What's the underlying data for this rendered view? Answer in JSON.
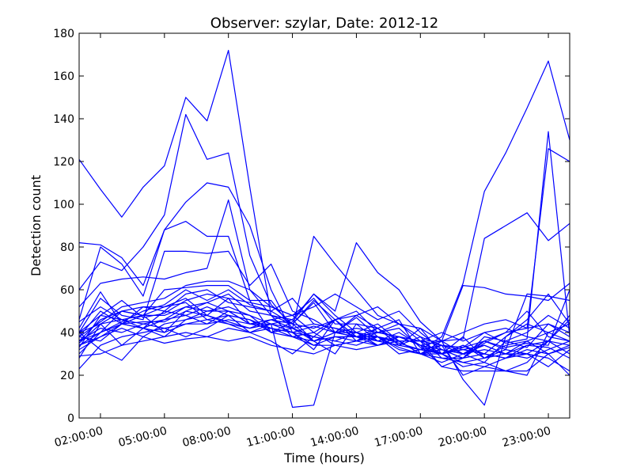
{
  "chart_data": {
    "type": "line",
    "title": "Observer: szylar, Date: 2012-12",
    "xlabel": "Time (hours)",
    "ylabel": "Detection count",
    "x_tick_labels": [
      "02:00:00",
      "05:00:00",
      "08:00:00",
      "11:00:00",
      "14:00:00",
      "17:00:00",
      "20:00:00",
      "23:00:00"
    ],
    "x": [
      "01:00:00",
      "02:00:00",
      "03:00:00",
      "04:00:00",
      "05:00:00",
      "06:00:00",
      "07:00:00",
      "08:00:00",
      "09:00:00",
      "10:00:00",
      "11:00:00",
      "12:00:00",
      "13:00:00",
      "14:00:00",
      "15:00:00",
      "16:00:00",
      "17:00:00",
      "18:00:00",
      "19:00:00",
      "20:00:00",
      "21:00:00",
      "22:00:00",
      "23:00:00",
      "24:00:00"
    ],
    "ylim": [
      0,
      180
    ],
    "y_ticks": [
      0,
      20,
      40,
      60,
      80,
      100,
      120,
      140,
      160,
      180
    ],
    "grid": false,
    "line_color": "#0000ff",
    "series": [
      {
        "values": [
          121,
          107,
          94,
          108,
          118,
          150,
          139,
          172,
          108,
          48,
          44,
          54,
          40,
          47,
          38,
          35,
          32,
          38,
          63,
          106,
          124,
          145,
          167,
          130
        ]
      },
      {
        "values": [
          60,
          73,
          69,
          80,
          95,
          142,
          121,
          124,
          76,
          53,
          44,
          55,
          46,
          38,
          40,
          42,
          33,
          30,
          33,
          40,
          35,
          37,
          134,
          38
        ]
      },
      {
        "values": [
          82,
          81,
          75,
          62,
          88,
          101,
          110,
          108,
          90,
          60,
          40,
          43,
          40,
          40,
          38,
          33,
          30,
          28,
          28,
          35,
          40,
          42,
          126,
          120
        ]
      },
      {
        "values": [
          52,
          63,
          65,
          66,
          65,
          68,
          70,
          102,
          60,
          52,
          48,
          56,
          44,
          44,
          42,
          34,
          42,
          36,
          37,
          84,
          90,
          96,
          83,
          91
        ]
      },
      {
        "values": [
          46,
          80,
          72,
          57,
          88,
          92,
          85,
          85,
          55,
          40,
          45,
          58,
          48,
          40,
          44,
          36,
          36,
          36,
          62,
          61,
          58,
          57,
          55,
          63
        ]
      },
      {
        "values": [
          40,
          56,
          48,
          46,
          78,
          78,
          77,
          78,
          62,
          72,
          50,
          46,
          40,
          42,
          40,
          38,
          34,
          32,
          30,
          36,
          33,
          35,
          34,
          60
        ]
      },
      {
        "values": [
          35,
          44,
          50,
          48,
          60,
          61,
          62,
          62,
          55,
          55,
          42,
          85,
          72,
          60,
          48,
          44,
          36,
          30,
          38,
          28,
          32,
          58,
          57,
          55
        ]
      },
      {
        "values": [
          38,
          45,
          52,
          54,
          56,
          62,
          64,
          64,
          60,
          48,
          46,
          58,
          50,
          82,
          68,
          60,
          45,
          36,
          30,
          34,
          30,
          36,
          40,
          44
        ]
      },
      {
        "values": [
          33,
          48,
          55,
          47,
          49,
          55,
          58,
          56,
          54,
          52,
          48,
          52,
          58,
          52,
          46,
          50,
          40,
          32,
          28,
          38,
          36,
          33,
          44,
          40
        ]
      },
      {
        "values": [
          30,
          40,
          45,
          50,
          53,
          60,
          55,
          60,
          53,
          50,
          44,
          42,
          46,
          50,
          40,
          44,
          38,
          34,
          33,
          36,
          40,
          50,
          38,
          36
        ]
      },
      {
        "values": [
          36,
          46,
          50,
          52,
          50,
          58,
          60,
          54,
          52,
          50,
          56,
          44,
          42,
          40,
          36,
          38,
          34,
          36,
          40,
          44,
          46,
          42,
          44,
          38
        ]
      },
      {
        "values": [
          42,
          59,
          44,
          45,
          45,
          50,
          54,
          58,
          50,
          48,
          38,
          36,
          40,
          38,
          36,
          34,
          32,
          30,
          34,
          28,
          34,
          36,
          30,
          34
        ]
      },
      {
        "values": [
          32,
          38,
          44,
          48,
          40,
          50,
          48,
          56,
          44,
          46,
          42,
          38,
          36,
          34,
          38,
          32,
          30,
          26,
          30,
          32,
          30,
          34,
          36,
          48
        ]
      },
      {
        "values": [
          28,
          44,
          34,
          42,
          38,
          46,
          50,
          52,
          48,
          40,
          38,
          34,
          34,
          36,
          42,
          36,
          30,
          34,
          32,
          30,
          28,
          34,
          33,
          28
        ]
      },
      {
        "values": [
          34,
          40,
          50,
          48,
          52,
          54,
          46,
          44,
          42,
          44,
          40,
          38,
          36,
          40,
          34,
          38,
          36,
          40,
          36,
          40,
          42,
          38,
          36,
          30
        ]
      },
      {
        "values": [
          23,
          34,
          38,
          40,
          42,
          38,
          42,
          48,
          46,
          42,
          40,
          32,
          46,
          38,
          42,
          34,
          38,
          28,
          26,
          24,
          28,
          30,
          28,
          22
        ]
      },
      {
        "values": [
          40,
          32,
          27,
          38,
          35,
          37,
          38,
          42,
          40,
          44,
          46,
          36,
          30,
          44,
          36,
          40,
          34,
          24,
          28,
          30,
          38,
          46,
          58,
          44
        ]
      },
      {
        "values": [
          45,
          52,
          46,
          44,
          42,
          44,
          46,
          48,
          40,
          36,
          30,
          38,
          46,
          48,
          52,
          44,
          42,
          30,
          24,
          26,
          36,
          40,
          48,
          42
        ]
      },
      {
        "values": [
          29,
          30,
          34,
          36,
          38,
          40,
          38,
          36,
          38,
          34,
          32,
          30,
          34,
          32,
          34,
          36,
          30,
          32,
          28,
          36,
          32,
          30,
          24,
          32
        ]
      },
      {
        "values": [
          38,
          50,
          44,
          52,
          52,
          56,
          48,
          45,
          42,
          46,
          48,
          40,
          46,
          36,
          40,
          38,
          36,
          34,
          20,
          24,
          22,
          22,
          30,
          20
        ]
      },
      {
        "values": [
          40,
          44,
          46,
          48,
          48,
          52,
          54,
          50,
          48,
          44,
          5,
          6,
          40,
          48,
          42,
          46,
          30,
          36,
          18,
          6,
          38,
          44,
          40,
          36
        ]
      },
      {
        "values": [
          36,
          42,
          40,
          44,
          46,
          48,
          44,
          50,
          44,
          46,
          44,
          36,
          38,
          36,
          34,
          36,
          30,
          30,
          32,
          34,
          30,
          30,
          36,
          46
        ]
      },
      {
        "values": [
          34,
          38,
          42,
          38,
          44,
          46,
          48,
          44,
          40,
          42,
          38,
          40,
          34,
          36,
          38,
          30,
          32,
          34,
          30,
          26,
          22,
          20,
          40,
          44
        ]
      },
      {
        "values": [
          40,
          48,
          46,
          42,
          50,
          48,
          52,
          48,
          46,
          40,
          42,
          44,
          42,
          38,
          38,
          36,
          36,
          24,
          22,
          22,
          22,
          26,
          36,
          34
        ]
      },
      {
        "values": [
          38,
          36,
          44,
          42,
          46,
          52,
          50,
          50,
          44,
          44,
          42,
          36,
          40,
          38,
          36,
          34,
          32,
          30,
          34,
          30,
          28,
          32,
          30,
          33
        ]
      },
      {
        "values": [
          36,
          40,
          44,
          42,
          40,
          44,
          44,
          46,
          44,
          42,
          40,
          34,
          38,
          38,
          34,
          38,
          34,
          30,
          26,
          28,
          30,
          28,
          32,
          36
        ]
      }
    ]
  }
}
